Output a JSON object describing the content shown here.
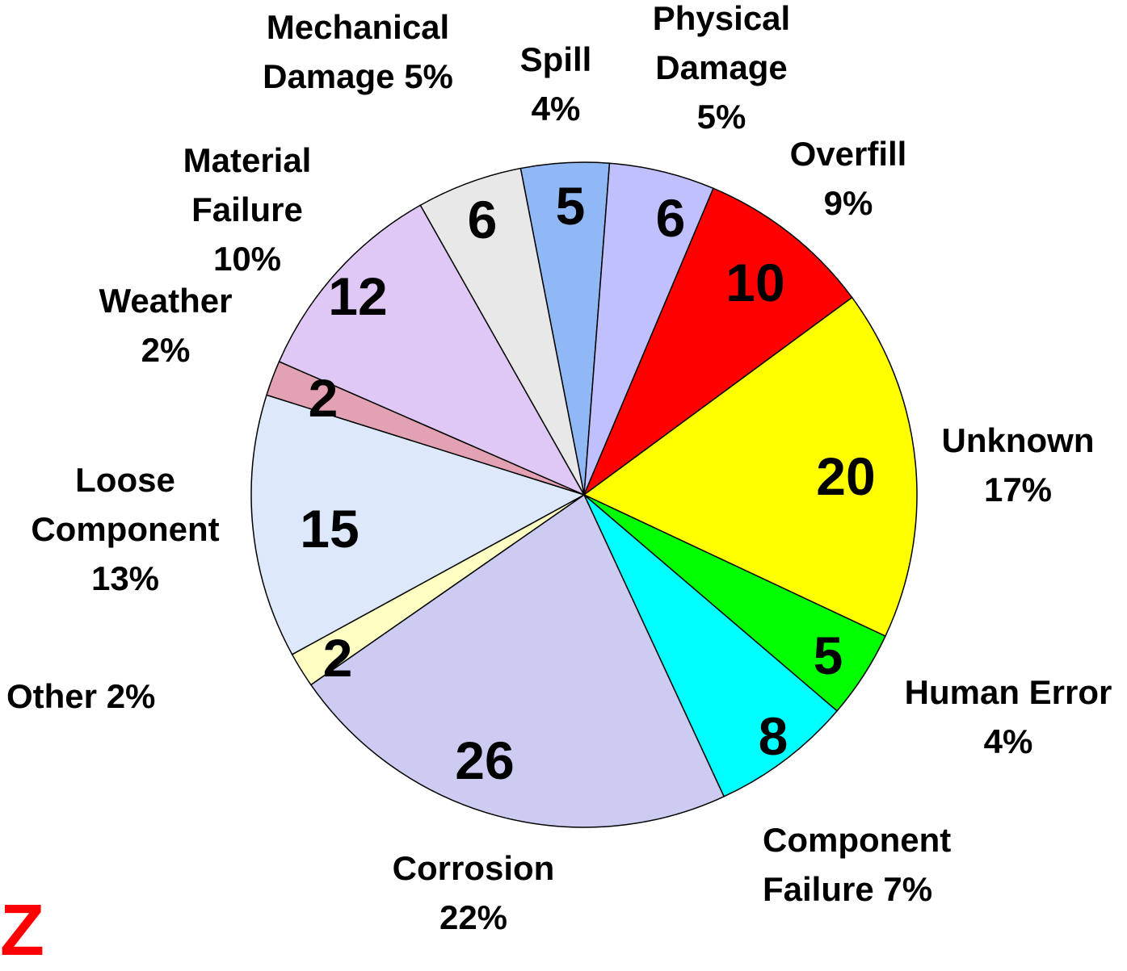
{
  "chart_data": {
    "type": "pie",
    "categories": [
      "Spill",
      "Physical Damage",
      "Overfill",
      "Unknown",
      "Human Error",
      "Component Failure",
      "Corrosion",
      "Other",
      "Loose Component",
      "Weather",
      "Material Failure",
      "Mechanical Damage"
    ],
    "values": [
      5,
      6,
      10,
      20,
      5,
      8,
      26,
      2,
      15,
      2,
      12,
      6
    ],
    "percent_labels": [
      "4%",
      "5%",
      "9%",
      "17%",
      "4%",
      "7%",
      "22%",
      "2%",
      "13%",
      "2%",
      "10%",
      "5%"
    ],
    "colors": [
      "#8fb8f4",
      "#c0c0ff",
      "#ff0000",
      "#ffff00",
      "#00ff00",
      "#00ffff",
      "#ccccf2",
      "#ffffc4",
      "#dde9fb",
      "#e3a2b4",
      "#e0c8f6",
      "#e8e8e8"
    ],
    "fragment": "Z"
  }
}
